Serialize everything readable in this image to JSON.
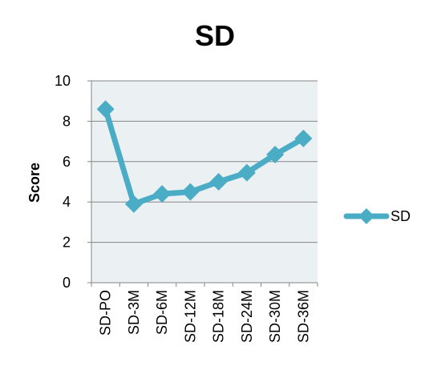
{
  "chart_data": {
    "type": "line",
    "title": "SD",
    "xlabel": "",
    "ylabel": "Score",
    "categories": [
      "SD-PO",
      "SD-3M",
      "SD-6M",
      "SD-12M",
      "SD-18M",
      "SD-24M",
      "SD-30M",
      "SD-36M"
    ],
    "series": [
      {
        "name": "SD",
        "values": [
          8.6,
          3.9,
          4.4,
          4.5,
          5.0,
          5.45,
          6.35,
          7.15
        ]
      }
    ],
    "ylim": [
      0,
      10
    ],
    "yticks": [
      0,
      2,
      4,
      6,
      8,
      10
    ],
    "grid": true,
    "legend_position": "right",
    "colors": {
      "series": "#4BACC6",
      "plot_bg": "#EBF1F3",
      "grid": "#868686"
    }
  }
}
